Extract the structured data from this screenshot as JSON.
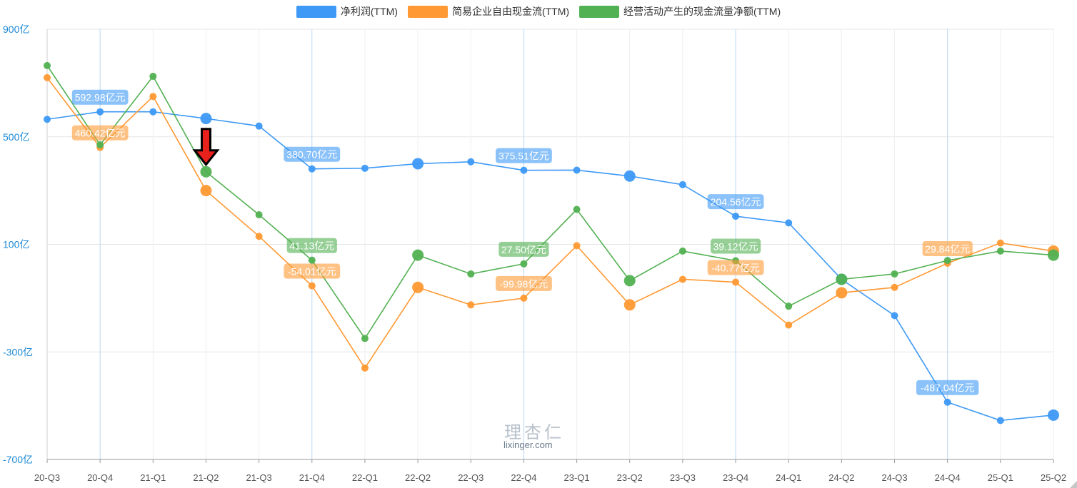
{
  "chart_data": {
    "type": "line",
    "categories": [
      "20-Q3",
      "20-Q4",
      "21-Q1",
      "21-Q2",
      "21-Q3",
      "21-Q4",
      "22-Q1",
      "22-Q2",
      "22-Q3",
      "22-Q4",
      "23-Q1",
      "23-Q2",
      "23-Q3",
      "23-Q4",
      "24-Q1",
      "24-Q2",
      "24-Q3",
      "24-Q4",
      "25-Q1",
      "25-Q2"
    ],
    "y_ticks": [
      "900亿",
      "500亿",
      "100亿",
      "-300亿",
      "-700亿"
    ],
    "ylim": [
      -700,
      900
    ],
    "grid": true,
    "legend_position": "top-center",
    "series": [
      {
        "name": "净利润(TTM)",
        "color": "#3d99f5",
        "values": [
          565,
          592.98,
          593,
          568,
          540,
          380.7,
          383,
          400,
          407,
          375.51,
          376,
          354,
          322,
          204.56,
          180,
          -30,
          -165,
          -487.04,
          -555,
          -535
        ],
        "big_points": [
          3,
          7,
          11,
          15,
          19
        ],
        "labels": [
          {
            "index": 1,
            "text": "592.98亿元"
          },
          {
            "index": 5,
            "text": "380.70亿元"
          },
          {
            "index": 9,
            "text": "375.51亿元"
          },
          {
            "index": 13,
            "text": "204.56亿元"
          },
          {
            "index": 17,
            "text": "-487.04亿元"
          }
        ]
      },
      {
        "name": "简易企业自由现金流(TTM)",
        "color": "#ff9933",
        "values": [
          720,
          460.42,
          650,
          300,
          130,
          -54.01,
          -360,
          -60,
          -125,
          -99.98,
          95,
          -125,
          -30,
          -40.77,
          -200,
          -80,
          -60,
          29.84,
          105,
          75
        ],
        "big_points": [
          3,
          7,
          11,
          15,
          19
        ],
        "labels": [
          {
            "index": 1,
            "text": "460.42亿元"
          },
          {
            "index": 5,
            "text": "-54.01亿元"
          },
          {
            "index": 9,
            "text": "-99.98亿元"
          },
          {
            "index": 13,
            "text": "-40.77亿元"
          },
          {
            "index": 17,
            "text": "29.84亿元"
          }
        ]
      },
      {
        "name": "经营活动产生的现金流量净额(TTM)",
        "color": "#52b152",
        "values": [
          765,
          470,
          725,
          370,
          210,
          41.13,
          -250,
          60,
          -10,
          27.5,
          230,
          -35,
          75,
          39.12,
          -130,
          -30,
          -10,
          40,
          75,
          60
        ],
        "big_points": [
          3,
          7,
          11,
          15,
          19
        ],
        "labels": [
          {
            "index": 5,
            "text": "41.13亿元"
          },
          {
            "index": 9,
            "text": "27.50亿元"
          },
          {
            "index": 13,
            "text": "39.12亿元"
          }
        ]
      }
    ],
    "annotation": {
      "type": "arrow",
      "target_index": 3,
      "color": "#e8211c"
    }
  },
  "watermark": {
    "logo": "理杏仁",
    "site": "lixinger.com"
  }
}
